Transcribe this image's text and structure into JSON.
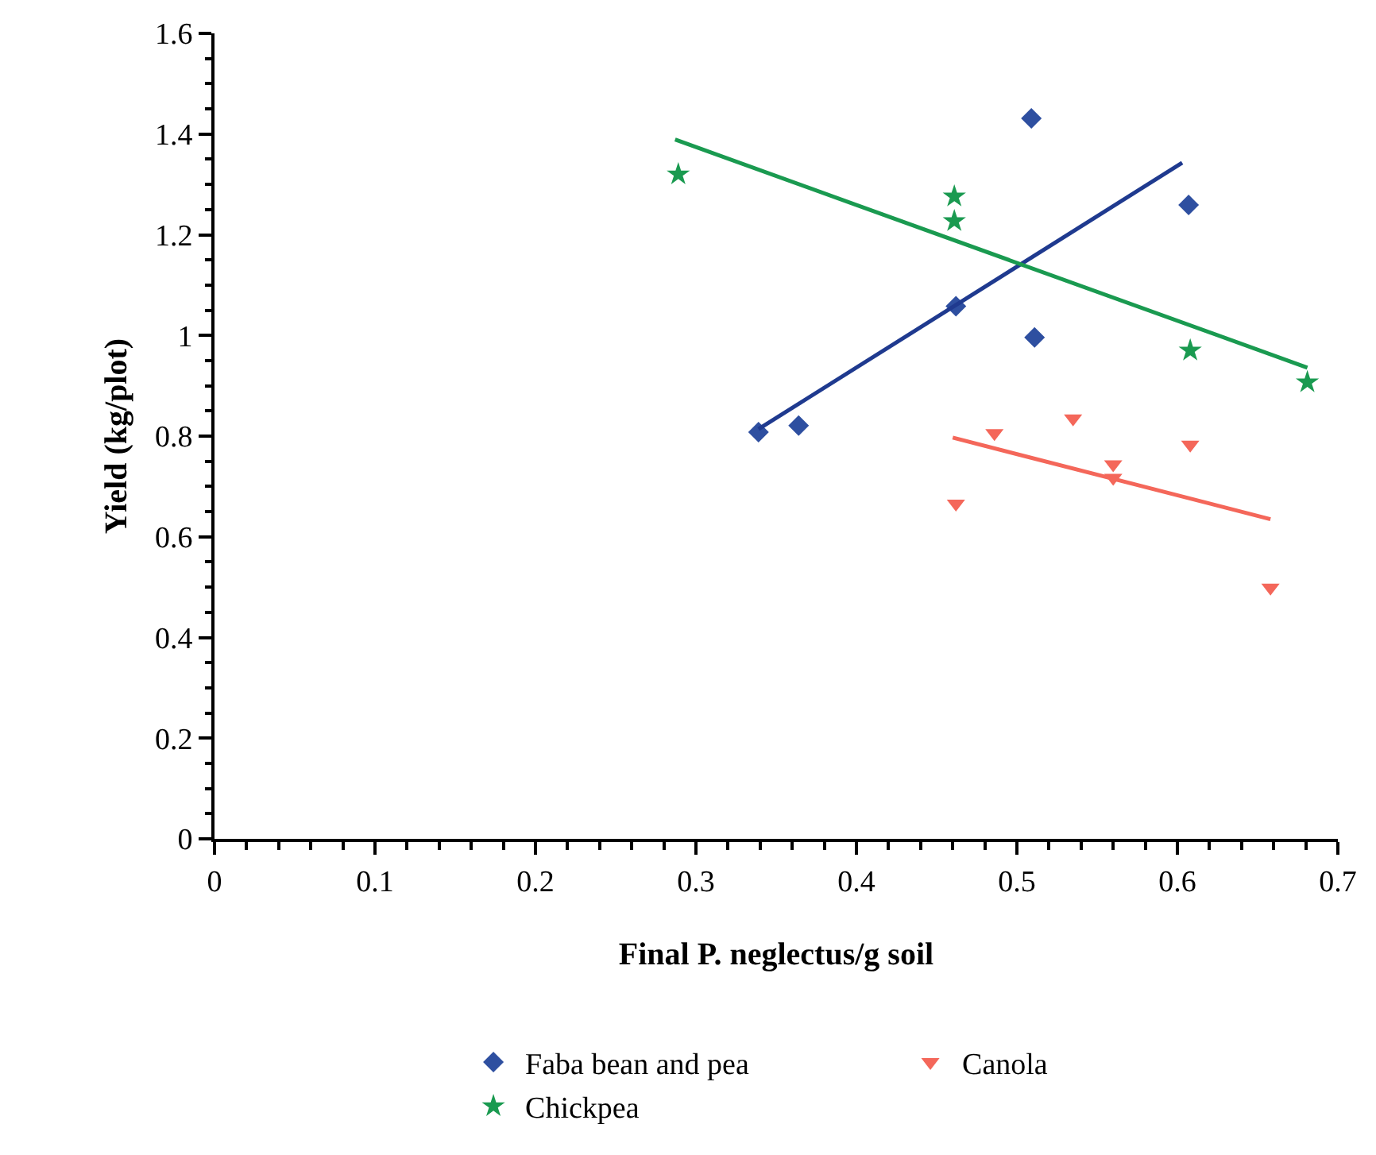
{
  "chart_data": {
    "type": "scatter",
    "xlabel": "Final P. neglectus/g soil",
    "ylabel": "Yield (kg/plot)",
    "xlim": [
      0,
      0.7
    ],
    "ylim": [
      0,
      1.6
    ],
    "xticks": [
      0,
      0.1,
      0.2,
      0.3,
      0.4,
      0.5,
      0.6,
      0.7
    ],
    "yticks": [
      0,
      0.2,
      0.4,
      0.6,
      0.8,
      1,
      1.2,
      1.4,
      1.6
    ],
    "legend": "bottom",
    "series": [
      {
        "name": "Faba bean and pea",
        "color": "#2e4fa0",
        "marker": "diamond",
        "x": [
          0.339,
          0.364,
          0.462,
          0.509,
          0.511,
          0.607
        ],
        "values": [
          0.808,
          0.821,
          1.058,
          1.431,
          0.996,
          1.259
        ]
      },
      {
        "name": "Canola",
        "color": "#f4675a",
        "marker": "triangle",
        "x": [
          0.486,
          0.535,
          0.608,
          0.56,
          0.56,
          0.462,
          0.658
        ],
        "values": [
          0.806,
          0.835,
          0.783,
          0.744,
          0.717,
          0.666,
          0.499
        ]
      },
      {
        "name": "Chickpea",
        "color": "#1a9a50",
        "marker": "star",
        "x": [
          0.289,
          0.461,
          0.461,
          0.608,
          0.681
        ],
        "values": [
          1.32,
          1.276,
          1.227,
          0.97,
          0.907
        ]
      },
      {
        "type": "line",
        "color": "#1f3a8f",
        "marker": "none",
        "x": [
          0.339,
          0.603
        ],
        "values": [
          0.814,
          1.343
        ]
      },
      {
        "type": "line",
        "color": "#1a9a50",
        "marker": "none",
        "x": [
          0.287,
          0.681
        ],
        "values": [
          1.389,
          0.936
        ]
      },
      {
        "type": "line",
        "color": "#f4675a",
        "marker": "none",
        "x": [
          0.46,
          0.658
        ],
        "values": [
          0.797,
          0.635
        ]
      }
    ]
  }
}
